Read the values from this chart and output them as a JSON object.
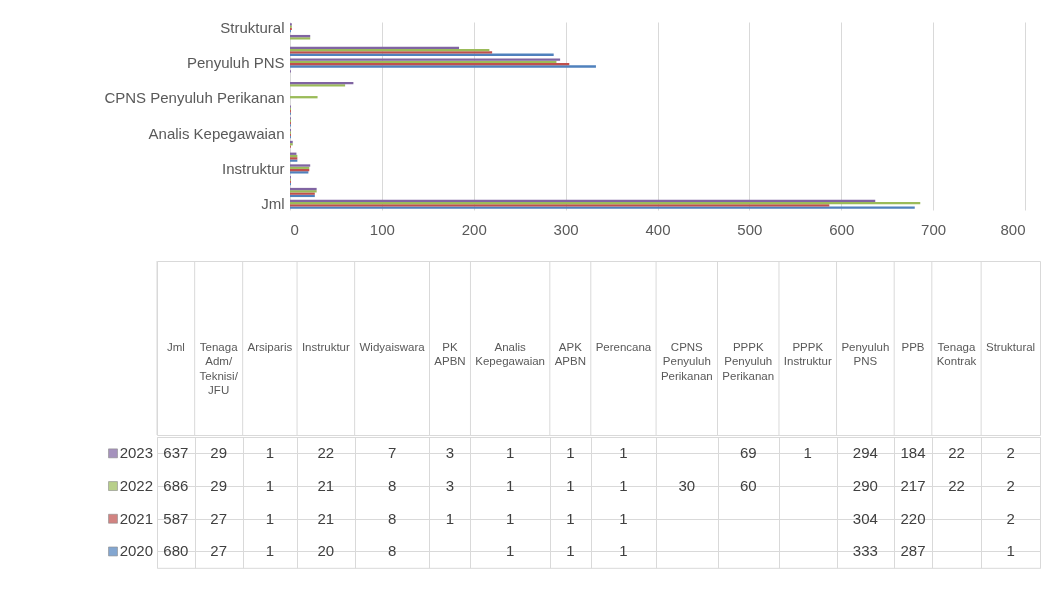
{
  "chart_data": [
    {
      "type": "bar",
      "orientation": "horizontal",
      "categories": [
        "Struktural",
        null,
        null,
        "Penyuluh PNS",
        null,
        null,
        "CPNS Penyuluh Perikanan",
        null,
        null,
        "Analis Kepegawaian",
        null,
        null,
        "Instruktur",
        null,
        null,
        "Jml"
      ],
      "series": [
        {
          "color": "#4f81bd",
          "values": [
            1,
            null,
            287,
            333,
            null,
            null,
            null,
            1,
            1,
            1,
            null,
            8,
            20,
            1,
            27,
            680
          ]
        },
        {
          "color": "#c0504d",
          "values": [
            2,
            null,
            220,
            304,
            null,
            null,
            null,
            1,
            1,
            1,
            1,
            8,
            21,
            1,
            27,
            587
          ]
        },
        {
          "color": "#9bbb59",
          "values": [
            2,
            22,
            217,
            290,
            null,
            60,
            30,
            1,
            1,
            1,
            3,
            8,
            21,
            1,
            29,
            686
          ]
        },
        {
          "color": "#8064a2",
          "values": [
            2,
            22,
            184,
            294,
            1,
            69,
            null,
            1,
            1,
            1,
            3,
            7,
            22,
            1,
            29,
            637
          ]
        }
      ],
      "xlim": [
        0,
        800
      ],
      "xticks": [
        0,
        100,
        200,
        300,
        400,
        500,
        600,
        700,
        800
      ],
      "grid": "x"
    },
    {
      "type": "heatmap",
      "y_categories": [
        "2023",
        "2022",
        "2021",
        "2020"
      ],
      "data_labels": true,
      "categories": [
        "Jml",
        "Tenaga Adm/Teknisi/JFU",
        "Arsiparis",
        "Instruktur",
        "Widyaiswara",
        "PK APBN",
        "Analis Kepegawaian",
        "APK APBN",
        "Perencana",
        "CPNS Penyuluh Perikanan",
        "PPPK Penyuluh Perikanan",
        "PPPK Instruktur",
        "Penyuluh PNS",
        "PPB",
        "Tenaga Kontrak",
        "Struktural"
      ],
      "cells": [
        [
          637,
          29,
          1,
          22,
          7,
          3,
          1,
          1,
          1,
          null,
          69,
          1,
          294,
          184,
          22,
          2
        ],
        [
          686,
          29,
          1,
          21,
          8,
          3,
          1,
          1,
          1,
          30,
          60,
          null,
          290,
          217,
          22,
          2
        ],
        [
          587,
          27,
          1,
          21,
          8,
          1,
          1,
          1,
          1,
          null,
          null,
          null,
          304,
          220,
          null,
          2
        ],
        [
          680,
          27,
          1,
          20,
          8,
          null,
          1,
          1,
          1,
          null,
          null,
          null,
          333,
          287,
          null,
          1
        ]
      ]
    }
  ]
}
